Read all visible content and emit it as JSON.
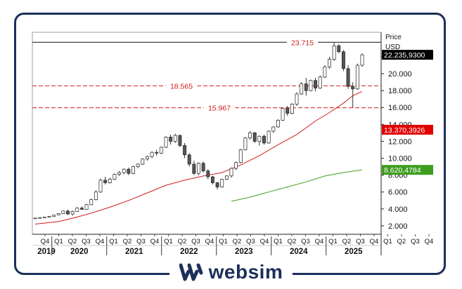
{
  "chart_data": {
    "type": "candlestick",
    "title": "",
    "price_axis_title": "Price",
    "currency": "USD",
    "ylim": [
      1000,
      24900
    ],
    "y_ticks": [
      {
        "value": 2000,
        "label": "2.000"
      },
      {
        "value": 4000,
        "label": "4.000"
      },
      {
        "value": 6000,
        "label": "6.000"
      },
      {
        "value": 8000,
        "label": "8.000"
      },
      {
        "value": 10000,
        "label": "10.000"
      },
      {
        "value": 12000,
        "label": "12.000"
      },
      {
        "value": 14000,
        "label": "14.000"
      },
      {
        "value": 16000,
        "label": "16.000"
      },
      {
        "value": 18000,
        "label": "18.000"
      },
      {
        "value": 20000,
        "label": "20.000"
      },
      {
        "value": 22000,
        "label": "22.000"
      }
    ],
    "x_quarters": [
      "Q4",
      "Q1",
      "Q2",
      "Q3",
      "Q4",
      "Q1",
      "Q2",
      "Q3",
      "Q4",
      "Q1",
      "Q2",
      "Q3",
      "Q4",
      "Q1",
      "Q2",
      "Q3",
      "Q4",
      "Q1",
      "Q2",
      "Q3",
      "Q4",
      "Q1",
      "Q2",
      "Q3",
      "Q4",
      "Q1",
      "Q2",
      "Q3",
      "Q4"
    ],
    "x_years": [
      {
        "label": "2019",
        "start_quarter": 0
      },
      {
        "label": "2020",
        "start_quarter": 1
      },
      {
        "label": "2021",
        "start_quarter": 5
      },
      {
        "label": "2022",
        "start_quarter": 9
      },
      {
        "label": "2023",
        "start_quarter": 13
      },
      {
        "label": "2024",
        "start_quarter": 17
      },
      {
        "label": "2025",
        "start_quarter": 21
      }
    ],
    "candles": [
      [
        2900,
        2950,
        2850,
        2920
      ],
      [
        2920,
        3000,
        2880,
        2980
      ],
      [
        2980,
        3050,
        2950,
        3020
      ],
      [
        3020,
        3150,
        2990,
        3100
      ],
      [
        3100,
        3300,
        3050,
        3280
      ],
      [
        3280,
        3500,
        3250,
        3450
      ],
      [
        3450,
        3800,
        3400,
        3750
      ],
      [
        3750,
        3900,
        3300,
        3400
      ],
      [
        3400,
        3800,
        3200,
        3700
      ],
      [
        3700,
        4200,
        3650,
        4100
      ],
      [
        4100,
        4300,
        3900,
        3950
      ],
      [
        3950,
        4600,
        3900,
        4500
      ],
      [
        4500,
        5200,
        4450,
        5100
      ],
      [
        5100,
        6200,
        5000,
        6000
      ],
      [
        6000,
        7600,
        5900,
        7400
      ],
      [
        7400,
        7800,
        6900,
        7100
      ],
      [
        7100,
        7700,
        7000,
        7500
      ],
      [
        7500,
        8200,
        7400,
        8100
      ],
      [
        8100,
        8500,
        7900,
        8300
      ],
      [
        8300,
        8800,
        8100,
        8700
      ],
      [
        8700,
        8900,
        8000,
        8200
      ],
      [
        8200,
        9100,
        8100,
        9000
      ],
      [
        9000,
        9400,
        8800,
        9300
      ],
      [
        9300,
        10000,
        9200,
        9900
      ],
      [
        9900,
        10300,
        9700,
        10200
      ],
      [
        10200,
        10800,
        10000,
        10700
      ],
      [
        10700,
        11000,
        10300,
        10600
      ],
      [
        10600,
        11400,
        10500,
        11300
      ],
      [
        11300,
        12600,
        11200,
        12500
      ],
      [
        12500,
        12800,
        11600,
        12000
      ],
      [
        12000,
        12900,
        11800,
        12700
      ],
      [
        12700,
        12800,
        11300,
        11500
      ],
      [
        11500,
        11800,
        10000,
        10400
      ],
      [
        10400,
        10600,
        9000,
        9300
      ],
      [
        9300,
        9700,
        8000,
        8200
      ],
      [
        8200,
        9500,
        8000,
        9400
      ],
      [
        9400,
        9600,
        8300,
        8500
      ],
      [
        8500,
        8700,
        7500,
        7800
      ],
      [
        7800,
        7900,
        6900,
        7100
      ],
      [
        7100,
        7200,
        6300,
        6600
      ],
      [
        6600,
        7600,
        6500,
        7500
      ],
      [
        7500,
        8000,
        7400,
        7900
      ],
      [
        7900,
        8900,
        7700,
        8800
      ],
      [
        8800,
        9600,
        8600,
        9500
      ],
      [
        9500,
        11100,
        9400,
        11000
      ],
      [
        11000,
        12500,
        10900,
        12400
      ],
      [
        12400,
        13200,
        12200,
        13000
      ],
      [
        13000,
        13100,
        11800,
        12000
      ],
      [
        12000,
        12700,
        11500,
        12600
      ],
      [
        12600,
        12800,
        11600,
        11800
      ],
      [
        11800,
        13300,
        11700,
        13200
      ],
      [
        13200,
        13800,
        13000,
        13700
      ],
      [
        13700,
        14600,
        13600,
        14500
      ],
      [
        14500,
        16000,
        14400,
        15900
      ],
      [
        15900,
        16200,
        15000,
        15300
      ],
      [
        15300,
        16500,
        15200,
        16400
      ],
      [
        16400,
        17800,
        16200,
        17600
      ],
      [
        17600,
        19000,
        17500,
        18800
      ],
      [
        18800,
        19500,
        17400,
        18000
      ],
      [
        18000,
        19300,
        17900,
        19200
      ],
      [
        19200,
        19500,
        17900,
        18300
      ],
      [
        18300,
        19800,
        18200,
        19600
      ],
      [
        19600,
        21000,
        19500,
        20800
      ],
      [
        20800,
        22000,
        20600,
        21700
      ],
      [
        21700,
        23715,
        21500,
        23300
      ],
      [
        23300,
        23500,
        22400,
        22600
      ],
      [
        22600,
        22800,
        20300,
        20600
      ],
      [
        20600,
        21000,
        18200,
        18500
      ],
      [
        18500,
        19000,
        15967,
        18200
      ],
      [
        18200,
        21200,
        18100,
        21000
      ],
      [
        21000,
        22400,
        20800,
        22236
      ]
    ],
    "ma_long": [
      [
        0,
        2200
      ],
      [
        5,
        2500
      ],
      [
        8,
        2900
      ],
      [
        12,
        3500
      ],
      [
        16,
        4200
      ],
      [
        20,
        5000
      ],
      [
        24,
        5900
      ],
      [
        28,
        6800
      ],
      [
        32,
        7400
      ],
      [
        36,
        7900
      ],
      [
        40,
        8300
      ],
      [
        44,
        9200
      ],
      [
        48,
        10300
      ],
      [
        52,
        11600
      ],
      [
        56,
        12800
      ],
      [
        60,
        14400
      ],
      [
        63,
        15400
      ],
      [
        66,
        16500
      ],
      [
        68,
        17400
      ],
      [
        70,
        17900
      ]
    ],
    "ma_200": [
      [
        42,
        4900
      ],
      [
        46,
        5400
      ],
      [
        50,
        6000
      ],
      [
        54,
        6600
      ],
      [
        58,
        7200
      ],
      [
        62,
        7900
      ],
      [
        66,
        8300
      ],
      [
        70,
        8620
      ]
    ],
    "levels": [
      {
        "value": 23715,
        "label": "23.715",
        "style": "solid"
      },
      {
        "value": 18565,
        "label": "18.565",
        "style": "dashed"
      },
      {
        "value": 15967,
        "label": "15.967",
        "style": "dashed"
      }
    ],
    "price_tags": [
      {
        "value": 22236,
        "label": "22.235,9300",
        "color": "#000000"
      },
      {
        "value": 13370,
        "label": "13.370,3926",
        "color": "#e00000"
      },
      {
        "value": 8620,
        "label": "8.620,4784",
        "color": "#3d9e1e"
      }
    ],
    "colors": {
      "level_line": "#d01b1b",
      "top_line": "#111111",
      "ma_long": "#d01b1b",
      "ma_200": "#3d9e1e",
      "up_candle": "#ffffff",
      "down_candle": "#555555",
      "frame": "#1b2f5a"
    }
  },
  "brand": {
    "name": "websim",
    "icon": "websim-logo-icon"
  }
}
